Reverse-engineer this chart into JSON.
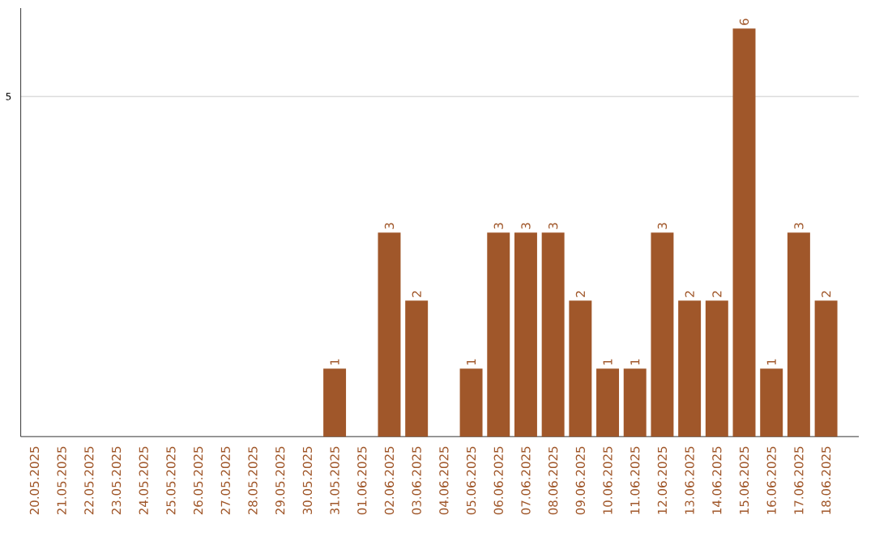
{
  "chart_data": {
    "type": "bar",
    "categories": [
      "20.05.2025",
      "21.05.2025",
      "22.05.2025",
      "23.05.2025",
      "24.05.2025",
      "25.05.2025",
      "26.05.2025",
      "27.05.2025",
      "28.05.2025",
      "29.05.2025",
      "30.05.2025",
      "31.05.2025",
      "01.06.2025",
      "02.06.2025",
      "03.06.2025",
      "04.06.2025",
      "05.06.2025",
      "06.06.2025",
      "07.06.2025",
      "08.06.2025",
      "09.06.2025",
      "10.06.2025",
      "11.06.2025",
      "12.06.2025",
      "13.06.2025",
      "14.06.2025",
      "15.06.2025",
      "16.06.2025",
      "17.06.2025",
      "18.06.2025"
    ],
    "values": [
      0,
      0,
      0,
      0,
      0,
      0,
      0,
      0,
      0,
      0,
      0,
      1,
      0,
      3,
      2,
      0,
      1,
      3,
      3,
      3,
      2,
      1,
      1,
      3,
      2,
      2,
      6,
      1,
      3,
      2
    ],
    "value_labels": [
      null,
      null,
      null,
      null,
      null,
      null,
      null,
      null,
      null,
      null,
      null,
      "1",
      null,
      "3",
      "2",
      null,
      "1",
      "3",
      "3",
      "3",
      "2",
      "1",
      "1",
      "3",
      "2",
      "2",
      "6",
      "1",
      "3",
      "2"
    ],
    "color": "#a0572a",
    "ylim": [
      0,
      6.3
    ],
    "yticks": [
      5
    ],
    "grid": "y"
  }
}
